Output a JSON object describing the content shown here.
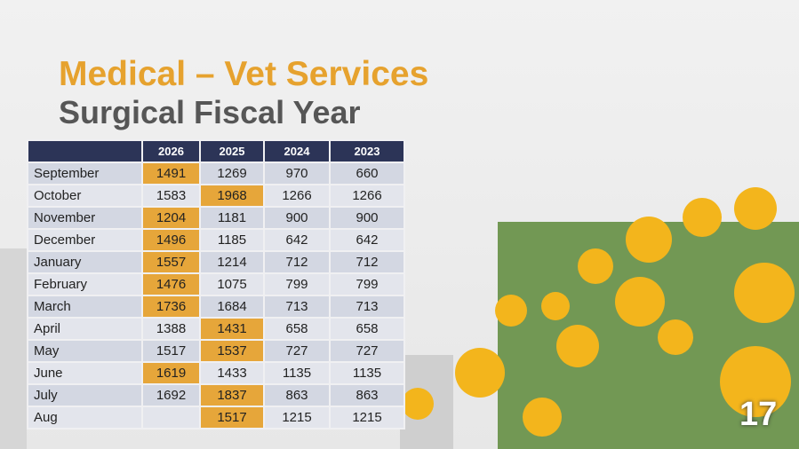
{
  "slide": {
    "title": "Medical – Vet Services",
    "subtitle": "Surgical Fiscal Year",
    "page_number": "17",
    "table": {
      "header": [
        null,
        "2026",
        "2025",
        "2024",
        "2023"
      ],
      "rows": [
        [
          "September",
          1491,
          1269,
          970,
          660
        ],
        [
          "October",
          1583,
          1968,
          1266,
          1266
        ],
        [
          "November",
          1204,
          1181,
          900,
          900
        ],
        [
          "December",
          1496,
          1185,
          642,
          642
        ],
        [
          "January",
          1557,
          1214,
          712,
          712
        ],
        [
          "February",
          1476,
          1075,
          799,
          799
        ],
        [
          "March",
          1736,
          1684,
          713,
          713
        ],
        [
          "April",
          1388,
          1431,
          658,
          658
        ],
        [
          "May",
          1517,
          1537,
          727,
          727
        ],
        [
          "June",
          1619,
          1433,
          1135,
          1135
        ],
        [
          "July",
          1692,
          1837,
          863,
          863
        ],
        [
          "Aug",
          null,
          1517,
          1215,
          1215
        ]
      ],
      "highlight_color": "#e6a63a",
      "highlighted_cells": [
        [
          0,
          1
        ],
        [
          1,
          2
        ],
        [
          2,
          1
        ],
        [
          3,
          1
        ],
        [
          4,
          1
        ],
        [
          5,
          1
        ],
        [
          6,
          1
        ],
        [
          7,
          2
        ],
        [
          8,
          2
        ],
        [
          9,
          1
        ],
        [
          10,
          2
        ],
        [
          11,
          2
        ]
      ]
    }
  }
}
